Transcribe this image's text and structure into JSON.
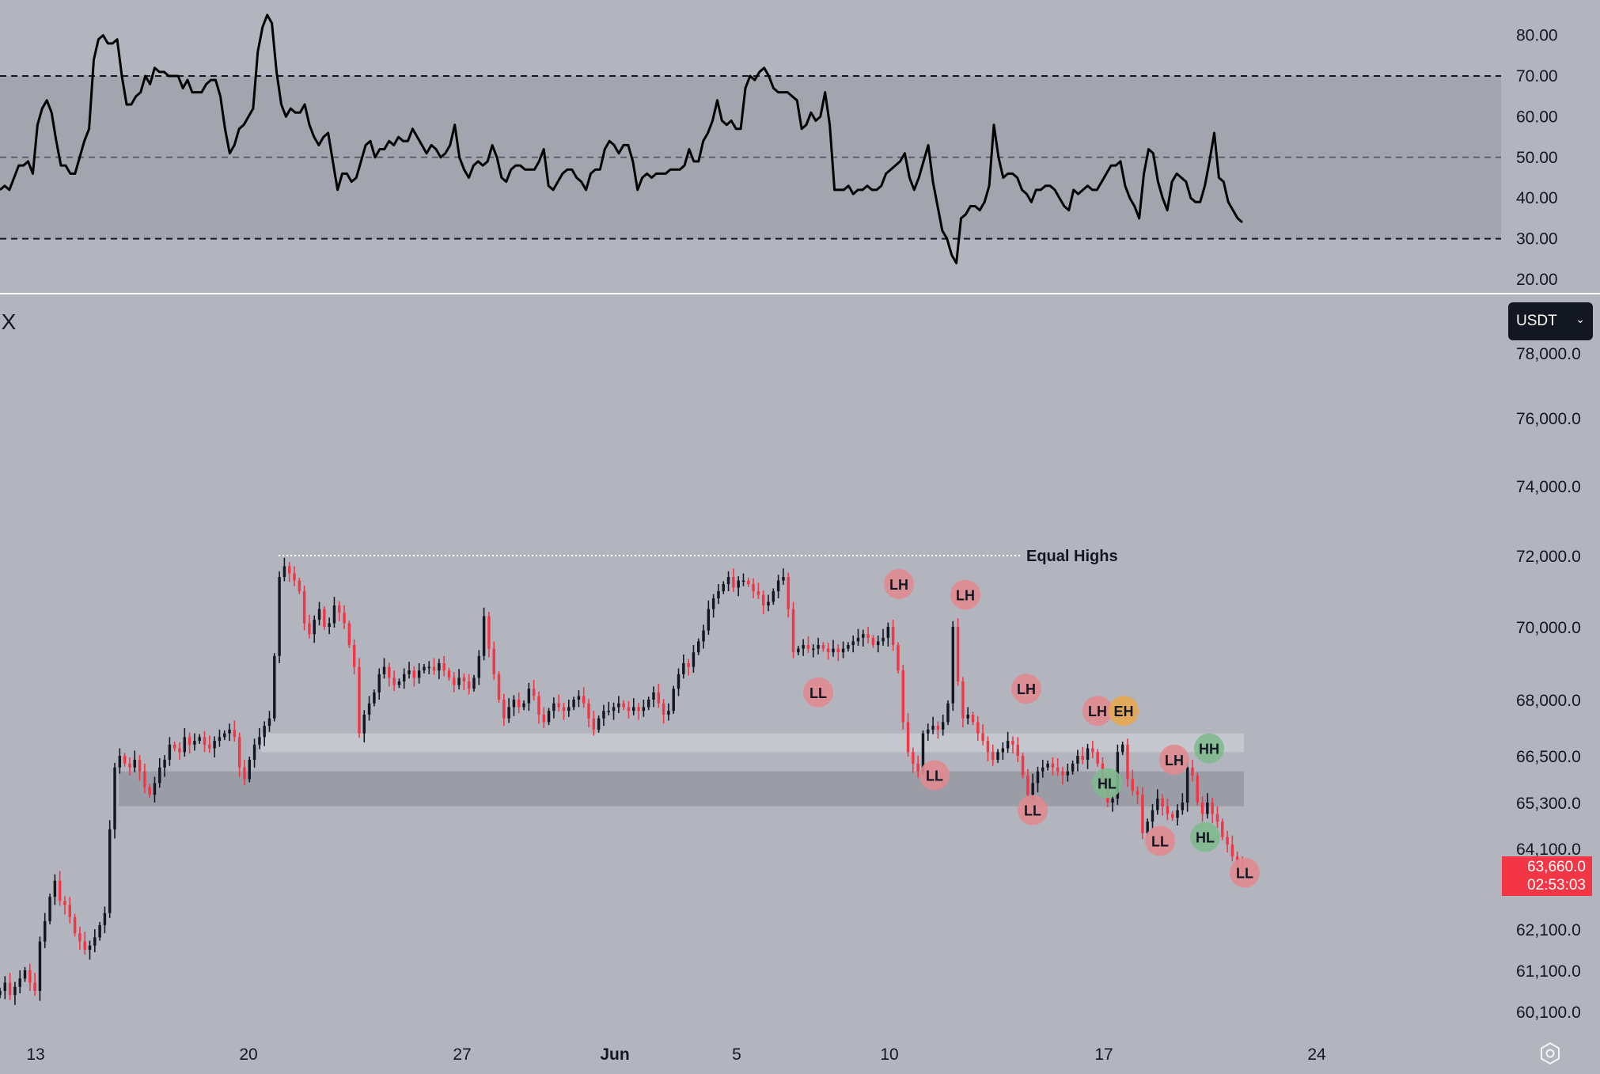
{
  "close_label": "X",
  "currency": {
    "selected": "USDT"
  },
  "last_price": {
    "price": "63,660.0",
    "countdown": "02:53:03"
  },
  "annotation": {
    "equal_highs": "Equal Highs"
  },
  "colors": {
    "background": "#b2b5be",
    "bull": "#131722",
    "bear": "#f23645",
    "ll_marker": "#e08a90",
    "hl_marker": "#7fb98f",
    "eh_marker": "#e6a750",
    "zone_light": "#c4c7ce",
    "zone_dark": "#9a9da5",
    "rsi_band": "#a2a5ae"
  },
  "chart_data": [
    {
      "type": "line",
      "name": "RSI",
      "yticks": [
        "80.00",
        "70.00",
        "60.00",
        "50.00",
        "40.00",
        "30.00",
        "20.00"
      ],
      "ylim": [
        15,
        87
      ],
      "levels": [
        70,
        50,
        30
      ],
      "band": [
        30,
        70
      ],
      "x_date_range": [
        "May 11",
        "Jun 21"
      ],
      "values": [
        42,
        43,
        42,
        45,
        48,
        48,
        49,
        46,
        58,
        62,
        64,
        61,
        54,
        48,
        48,
        46,
        46,
        50,
        54,
        57,
        74,
        79,
        80,
        78,
        78,
        79,
        70,
        63,
        63,
        65,
        66,
        70,
        68,
        72,
        71,
        71,
        70,
        70,
        70,
        67,
        69,
        66,
        66,
        66,
        68,
        69,
        69,
        65,
        57,
        51,
        53,
        57,
        58,
        60,
        62,
        76,
        82,
        85,
        83,
        71,
        63,
        60,
        62,
        61,
        61,
        63,
        58,
        55,
        53,
        55,
        56,
        49,
        42,
        46,
        46,
        44,
        45,
        49,
        53,
        54,
        50,
        52,
        52,
        54,
        53,
        55,
        54,
        54,
        57,
        55,
        53,
        51,
        53,
        52,
        50,
        51,
        53,
        58,
        50,
        47,
        45,
        48,
        49,
        48,
        49,
        53,
        50,
        45,
        44,
        47,
        48,
        48,
        47,
        47,
        47,
        49,
        52,
        43,
        42,
        44,
        46,
        47,
        47,
        45,
        44,
        42,
        46,
        47,
        47,
        52,
        54,
        53,
        51,
        53,
        53,
        49,
        42,
        45,
        46,
        45,
        46,
        46,
        46,
        47,
        47,
        47,
        48,
        52,
        49,
        49,
        54,
        56,
        59,
        64,
        59,
        58,
        59,
        57,
        57,
        67,
        70,
        69,
        71,
        72,
        70,
        67,
        66,
        66,
        66,
        65,
        64,
        57,
        58,
        61,
        59,
        60,
        66,
        58,
        42,
        42,
        42,
        43,
        41,
        42,
        42,
        43,
        42,
        42,
        43,
        46,
        47,
        48,
        49,
        51,
        45,
        42,
        45,
        49,
        53,
        44,
        38,
        32,
        30,
        26,
        24,
        35,
        36,
        38,
        38,
        37,
        39,
        43,
        58,
        50,
        45,
        46,
        46,
        45,
        42,
        41,
        39,
        42,
        42,
        43,
        43,
        42,
        40,
        38,
        37,
        42,
        41,
        42,
        43,
        42,
        42,
        44,
        46,
        48,
        48,
        49,
        43,
        40,
        38,
        35,
        46,
        52,
        51,
        44,
        40,
        37,
        44,
        46,
        45,
        44,
        40,
        39,
        39,
        43,
        49,
        56,
        45,
        44,
        39,
        37,
        35,
        34
      ]
    },
    {
      "type": "candlestick",
      "name": "Price",
      "yticks": [
        "78,000.0",
        "76,000.0",
        "74,000.0",
        "72,000.0",
        "70,000.0",
        "68,000.0",
        "66,500.0",
        "65,300.0",
        "64,100.0",
        "62,100.0",
        "61,100.0",
        "60,100.0"
      ],
      "ylim": [
        59700,
        78300
      ],
      "xticks": [
        "13",
        "20",
        "27",
        "Jun",
        "5",
        "10",
        "17",
        "24"
      ],
      "x_date_range": [
        "May 11",
        "Jun 21"
      ],
      "last_price": 63660,
      "equal_highs_level": 72000,
      "zones": [
        {
          "from": 66600,
          "to": 67100,
          "tone": "light"
        },
        {
          "from": 65200,
          "to": 66100,
          "tone": "dark"
        }
      ],
      "structure_points": [
        {
          "label": "LH",
          "price": 71200
        },
        {
          "label": "LH",
          "price": 70900
        },
        {
          "label": "LL",
          "price": 68200
        },
        {
          "label": "LL",
          "price": 66000
        },
        {
          "label": "LH",
          "price": 68300
        },
        {
          "label": "LL",
          "price": 65100
        },
        {
          "label": "LH",
          "price": 67700
        },
        {
          "label": "EH",
          "price": 67700
        },
        {
          "label": "HL",
          "price": 65800
        },
        {
          "label": "LH",
          "price": 66400
        },
        {
          "label": "LL",
          "price": 64300
        },
        {
          "label": "HH",
          "price": 66700
        },
        {
          "label": "HL",
          "price": 64400
        },
        {
          "label": "LL",
          "price": 63500
        }
      ],
      "closes": [
        60600,
        60800,
        60500,
        60700,
        60900,
        61100,
        60800,
        60600,
        61800,
        62300,
        62900,
        63300,
        62800,
        62700,
        62400,
        62000,
        61800,
        61600,
        61700,
        61900,
        62200,
        62500,
        64600,
        66200,
        66500,
        66300,
        66200,
        66400,
        66100,
        65700,
        65500,
        65800,
        66200,
        66400,
        66800,
        66700,
        66600,
        67000,
        66800,
        66900,
        67000,
        66800,
        66700,
        66900,
        67000,
        67100,
        67200,
        67000,
        66200,
        65900,
        66400,
        66800,
        67000,
        67300,
        67500,
        69200,
        71400,
        71700,
        71500,
        71300,
        71000,
        70100,
        69800,
        70200,
        70500,
        70000,
        70100,
        70600,
        70400,
        70100,
        69500,
        68900,
        67100,
        67600,
        67900,
        68200,
        68700,
        68900,
        68600,
        68400,
        68500,
        68700,
        68800,
        68600,
        68800,
        68900,
        68900,
        68800,
        69000,
        68800,
        68600,
        68400,
        68600,
        68500,
        68300,
        68600,
        69200,
        70300,
        69400,
        68700,
        68000,
        67500,
        67800,
        68000,
        67800,
        67900,
        68300,
        68100,
        67600,
        67400,
        67700,
        67900,
        67800,
        67700,
        67800,
        68000,
        68100,
        67900,
        67500,
        67200,
        67500,
        67700,
        67700,
        67800,
        67900,
        67800,
        67700,
        67800,
        67700,
        67800,
        68000,
        68200,
        67900,
        67600,
        67700,
        68300,
        68700,
        69000,
        68900,
        69300,
        69600,
        69900,
        70500,
        70800,
        71000,
        71200,
        71400,
        71100,
        71300,
        71300,
        71200,
        71000,
        70900,
        70600,
        70700,
        71000,
        71300,
        71400,
        70500,
        69300,
        69400,
        69500,
        69400,
        69400,
        69500,
        69400,
        69300,
        69400,
        69300,
        69400,
        69500,
        69600,
        69700,
        69800,
        69700,
        69500,
        69600,
        69700,
        70000,
        69500,
        68800,
        67400,
        66600,
        66300,
        66100,
        67100,
        67200,
        67300,
        67200,
        67400,
        67900,
        70000,
        68500,
        67500,
        67600,
        67400,
        67100,
        66900,
        66600,
        66400,
        66600,
        66700,
        66900,
        66800,
        66500,
        66000,
        65500,
        65800,
        66100,
        66200,
        66300,
        66200,
        66100,
        66000,
        66100,
        66300,
        66500,
        66400,
        66700,
        66600,
        66300,
        65700,
        65300,
        65400,
        66600,
        66800,
        65900,
        65600,
        65500,
        64500,
        64800,
        65100,
        65400,
        65200,
        65000,
        64900,
        65100,
        65300,
        66200,
        66000,
        65300,
        65000,
        65300,
        65000,
        64800,
        64400,
        64200,
        63900,
        63700,
        63660
      ]
    }
  ]
}
